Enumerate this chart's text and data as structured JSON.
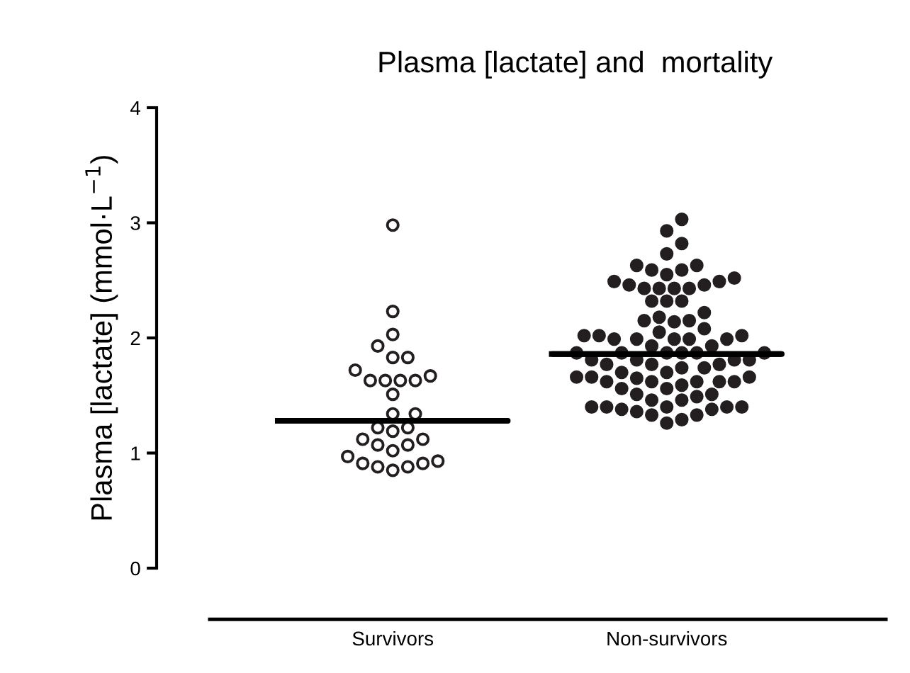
{
  "chart_data": {
    "type": "scatter",
    "title": "Plasma [lactate] and  mortality",
    "ylabel": "Plasma [lactate] (mmol·L$^{−1}$)",
    "categories": [
      "Survivors",
      "Non-survivors"
    ],
    "ylim": [
      0,
      4
    ],
    "yticks": [
      0,
      1,
      2,
      3,
      4
    ],
    "grid": false,
    "legend": false,
    "marker": "circle",
    "series": [
      {
        "color": "#ffffff",
        "x": [
          "Survivors",
          "Survivors",
          "Survivors",
          "Survivors",
          "Survivors",
          "Survivors",
          "Survivors",
          "Survivors",
          "Survivors",
          "Survivors",
          "Survivors",
          "Survivors",
          "Survivors",
          "Survivors",
          "Survivors",
          "Survivors",
          "Survivors",
          "Survivors",
          "Survivors",
          "Survivors",
          "Survivors",
          "Survivors",
          "Survivors",
          "Survivors",
          "Survivors",
          "Survivors",
          "Survivors",
          "Survivors",
          "Survivors",
          "Survivors"
        ],
        "values": [
          2.98,
          2.23,
          2.03,
          1.93,
          1.83,
          1.83,
          1.72,
          1.67,
          1.63,
          1.63,
          1.63,
          1.63,
          1.51,
          1.34,
          1.34,
          1.22,
          1.22,
          1.19,
          1.12,
          1.12,
          1.07,
          1.07,
          1.02,
          0.97,
          0.93,
          0.91,
          0.91,
          0.88,
          0.88,
          0.85
        ]
      },
      {
        "color": "#231f20",
        "x": [
          "Non-survivors",
          "Non-survivors",
          "Non-survivors",
          "Non-survivors",
          "Non-survivors",
          "Non-survivors",
          "Non-survivors",
          "Non-survivors",
          "Non-survivors",
          "Non-survivors",
          "Non-survivors",
          "Non-survivors",
          "Non-survivors",
          "Non-survivors",
          "Non-survivors",
          "Non-survivors",
          "Non-survivors",
          "Non-survivors",
          "Non-survivors",
          "Non-survivors",
          "Non-survivors",
          "Non-survivors",
          "Non-survivors",
          "Non-survivors",
          "Non-survivors",
          "Non-survivors",
          "Non-survivors",
          "Non-survivors",
          "Non-survivors",
          "Non-survivors",
          "Non-survivors",
          "Non-survivors",
          "Non-survivors",
          "Non-survivors",
          "Non-survivors",
          "Non-survivors",
          "Non-survivors",
          "Non-survivors",
          "Non-survivors",
          "Non-survivors",
          "Non-survivors",
          "Non-survivors",
          "Non-survivors",
          "Non-survivors",
          "Non-survivors",
          "Non-survivors",
          "Non-survivors",
          "Non-survivors",
          "Non-survivors",
          "Non-survivors",
          "Non-survivors",
          "Non-survivors",
          "Non-survivors",
          "Non-survivors",
          "Non-survivors",
          "Non-survivors",
          "Non-survivors",
          "Non-survivors",
          "Non-survivors",
          "Non-survivors",
          "Non-survivors",
          "Non-survivors",
          "Non-survivors",
          "Non-survivors",
          "Non-survivors",
          "Non-survivors",
          "Non-survivors",
          "Non-survivors",
          "Non-survivors",
          "Non-survivors",
          "Non-survivors",
          "Non-survivors",
          "Non-survivors",
          "Non-survivors",
          "Non-survivors",
          "Non-survivors",
          "Non-survivors",
          "Non-survivors",
          "Non-survivors",
          "Non-survivors",
          "Non-survivors",
          "Non-survivors",
          "Non-survivors",
          "Non-survivors"
        ],
        "values": [
          3.03,
          2.93,
          2.82,
          2.73,
          2.63,
          2.63,
          2.59,
          2.59,
          2.55,
          2.52,
          2.49,
          2.49,
          2.46,
          2.46,
          2.43,
          2.43,
          2.43,
          2.43,
          2.32,
          2.32,
          2.32,
          2.22,
          2.18,
          2.15,
          2.15,
          2.14,
          2.08,
          2.05,
          2.02,
          2.02,
          2.02,
          1.99,
          1.99,
          1.99,
          1.99,
          1.99,
          1.93,
          1.93,
          1.87,
          1.87,
          1.87,
          1.87,
          1.87,
          1.87,
          1.81,
          1.81,
          1.81,
          1.81,
          1.77,
          1.77,
          1.77,
          1.74,
          1.74,
          1.7,
          1.7,
          1.66,
          1.66,
          1.66,
          1.65,
          1.62,
          1.62,
          1.62,
          1.62,
          1.62,
          1.59,
          1.56,
          1.56,
          1.51,
          1.51,
          1.49,
          1.46,
          1.46,
          1.4,
          1.4,
          1.4,
          1.4,
          1.38,
          1.38,
          1.36,
          1.33,
          1.33,
          1.29,
          1.26,
          1.4
        ]
      },
      {
        "type": "box",
        "color": "#000000",
        "boxes": [
          {
            "low": 1.28,
            "q1": 1.28,
            "median": 1.28,
            "q3": 1.28,
            "high": 1.28
          },
          {
            "low": 1.86,
            "q1": 1.86,
            "median": 1.86,
            "q3": 1.86,
            "high": 1.86
          }
        ]
      }
    ]
  }
}
